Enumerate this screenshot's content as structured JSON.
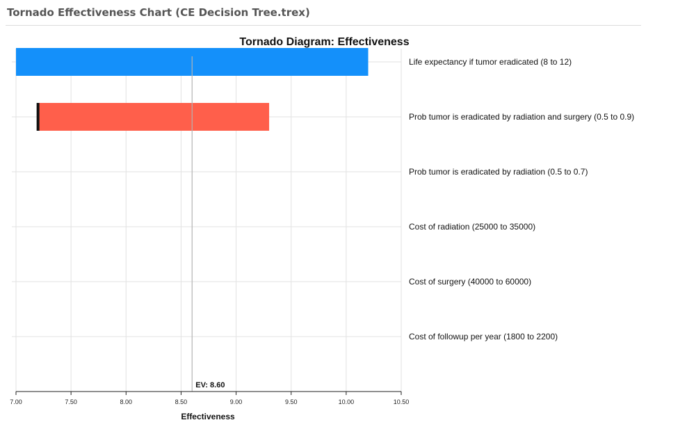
{
  "window": {
    "title": "Tornado Effectiveness Chart (CE Decision Tree.trex)"
  },
  "colors": {
    "low_bar": "#1490fa",
    "high_bar": "#ff5f4b",
    "grid": "#e2e2e2",
    "ev_line": "#b3b3b3",
    "marker": "#111111"
  },
  "chart_data": {
    "type": "bar",
    "orientation": "horizontal",
    "title": "Tornado Diagram: Effectiveness",
    "xlabel": "Effectiveness",
    "xlim": [
      7.0,
      10.5
    ],
    "xticks": [
      "7.00",
      "7.50",
      "8.00",
      "8.50",
      "9.00",
      "9.50",
      "10.00",
      "10.50"
    ],
    "ev": 8.6,
    "ev_label": "EV: 8.60",
    "grid": true,
    "categories": [
      "Life expectancy if tumor eradicated (8 to 12)",
      "Prob tumor is eradicated by radiation and surgery (0.5 to 0.9)",
      "Prob tumor is eradicated by radiation (0.5 to 0.7)",
      "Cost of radiation (25000 to 35000)",
      "Cost of surgery (40000 to 60000)",
      "Cost of followup per year (1800 to 2200)"
    ],
    "bars": [
      {
        "min": 7.0,
        "max": 10.2,
        "color_key": "low_bar",
        "marker": null
      },
      {
        "min": 7.2,
        "max": 9.3,
        "color_key": "high_bar",
        "marker": 7.2
      },
      {
        "min": 8.6,
        "max": 8.6,
        "color_key": "low_bar",
        "marker": null
      },
      {
        "min": 8.6,
        "max": 8.6,
        "color_key": "low_bar",
        "marker": null
      },
      {
        "min": 8.6,
        "max": 8.6,
        "color_key": "low_bar",
        "marker": null
      },
      {
        "min": 8.6,
        "max": 8.6,
        "color_key": "low_bar",
        "marker": null
      }
    ]
  }
}
